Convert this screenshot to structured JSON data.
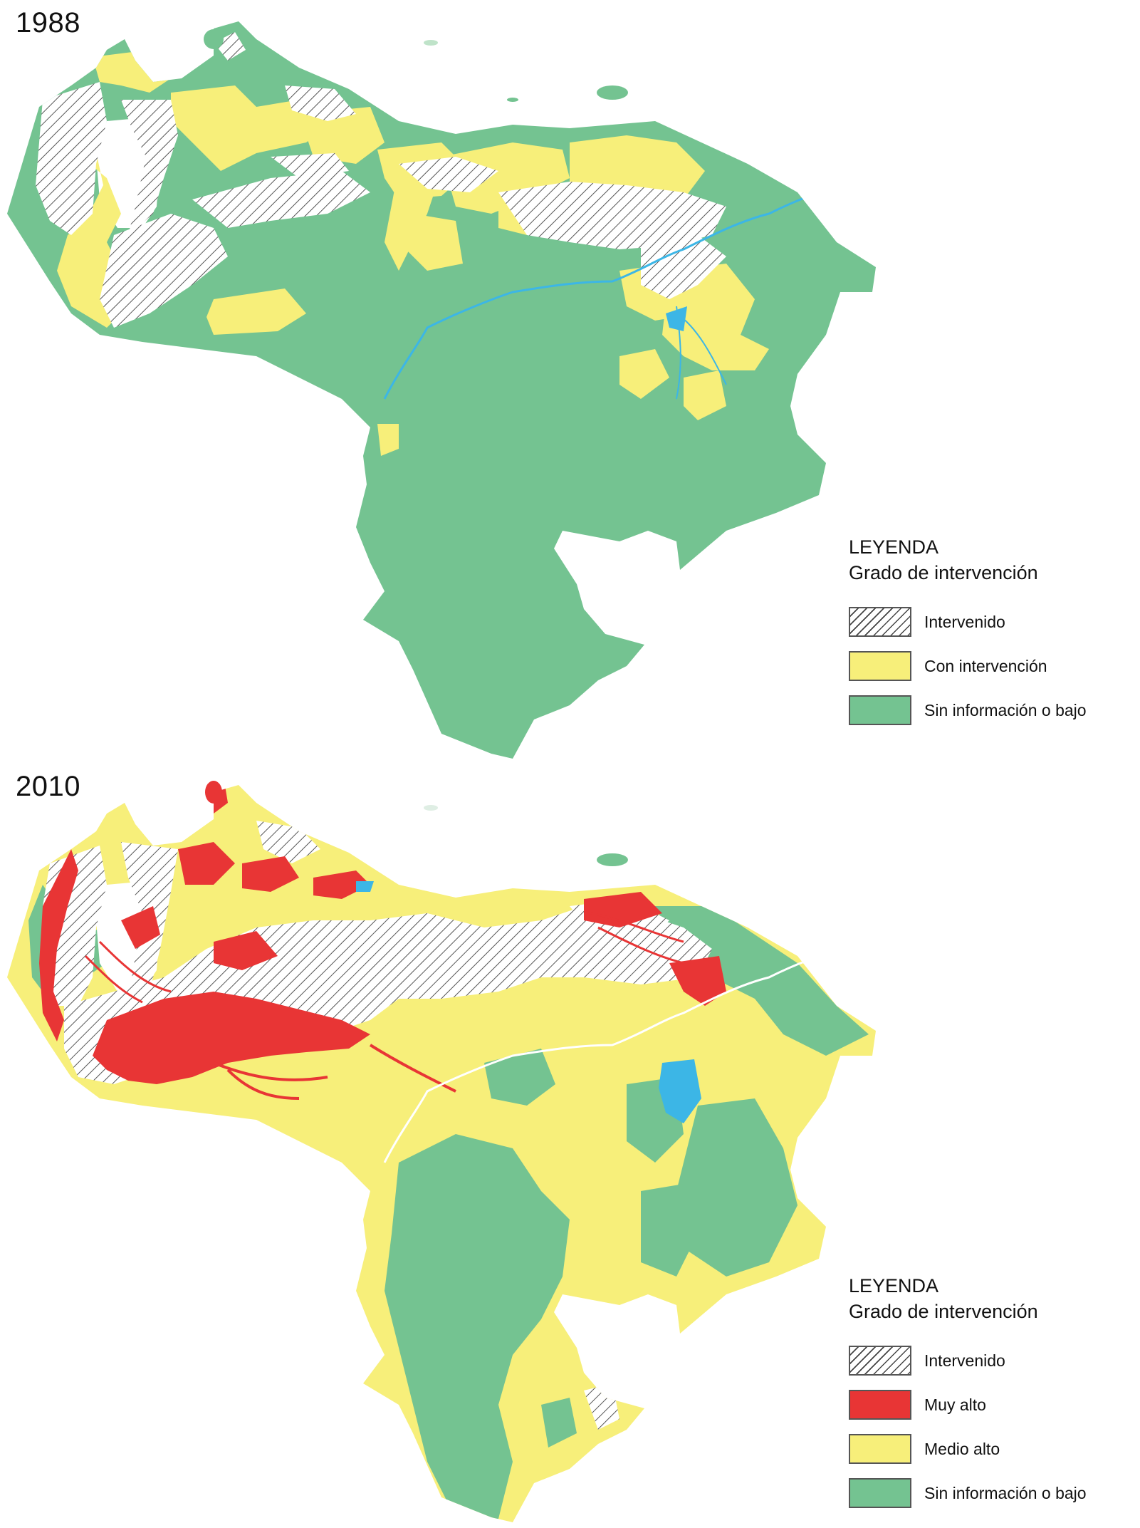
{
  "maps": [
    {
      "year": "1988",
      "legend": {
        "title": "LEYENDA",
        "subtitle": "Grado de intervención",
        "items": [
          {
            "label": "Intervenido",
            "pattern": "hatch",
            "color": "#ffffff"
          },
          {
            "label": "Con intervención",
            "pattern": "solid",
            "color": "#f7ef7a"
          },
          {
            "label": "Sin información o bajo",
            "pattern": "solid",
            "color": "#74c391"
          }
        ]
      }
    },
    {
      "year": "2010",
      "legend": {
        "title": "LEYENDA",
        "subtitle": "Grado de intervención",
        "items": [
          {
            "label": "Intervenido",
            "pattern": "hatch",
            "color": "#ffffff"
          },
          {
            "label": "Muy alto",
            "pattern": "solid",
            "color": "#e83535"
          },
          {
            "label": "Medio alto",
            "pattern": "solid",
            "color": "#f7ef7a"
          },
          {
            "label": "Sin información o bajo",
            "pattern": "solid",
            "color": "#74c391"
          }
        ]
      }
    }
  ],
  "colors": {
    "green": "#74c391",
    "yellow": "#f7ef7a",
    "red": "#e83535",
    "water": "#3cb6e6",
    "hatch_line": "#444444"
  }
}
